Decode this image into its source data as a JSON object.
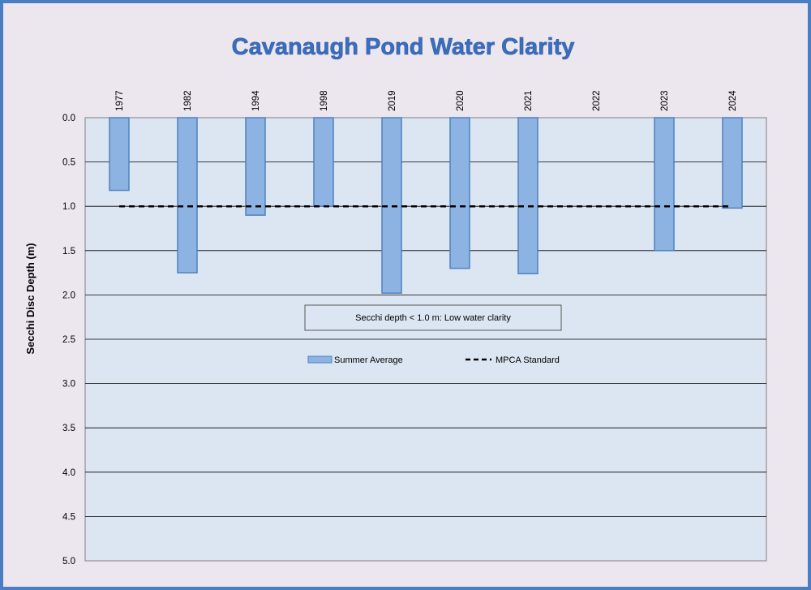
{
  "chart_data": {
    "type": "bar",
    "title": "Cavanaugh Pond Water Clarity",
    "ylabel": "Secchi Disc Depth (m)",
    "xlabel": "",
    "categories": [
      "1977",
      "1982",
      "1994",
      "1998",
      "2019",
      "2020",
      "2021",
      "2022",
      "2023",
      "2024"
    ],
    "series": [
      {
        "name": "Summer Average",
        "type": "bar",
        "color": "#8db3e2",
        "edge_color": "#4f81bd",
        "values": [
          0.82,
          1.75,
          1.1,
          1.0,
          1.98,
          1.7,
          1.76,
          null,
          1.5,
          1.02
        ]
      },
      {
        "name": "MPCA Standard",
        "type": "line",
        "style": "dashed",
        "color": "#000000",
        "values": [
          1.0,
          1.0,
          1.0,
          1.0,
          1.0,
          1.0,
          1.0,
          1.0,
          1.0,
          1.0
        ]
      }
    ],
    "ylim": [
      0,
      5
    ],
    "y_inverted": true,
    "yticks": [
      "0.0",
      "0.5",
      "1.0",
      "1.5",
      "2.0",
      "2.5",
      "3.0",
      "3.5",
      "4.0",
      "4.5",
      "5.0"
    ],
    "x_axis_position": "top",
    "x_tick_rotation": "vertical",
    "grid": "horizontal",
    "legend_position": "center",
    "annotation": "Secchi depth  < 1.0 m: Low water clarity",
    "colors": {
      "plot_background": "#dce6f2",
      "frame_background": "#ece6ef",
      "frame_border": "#4a7ec2",
      "title": "#3a6fc0"
    }
  }
}
